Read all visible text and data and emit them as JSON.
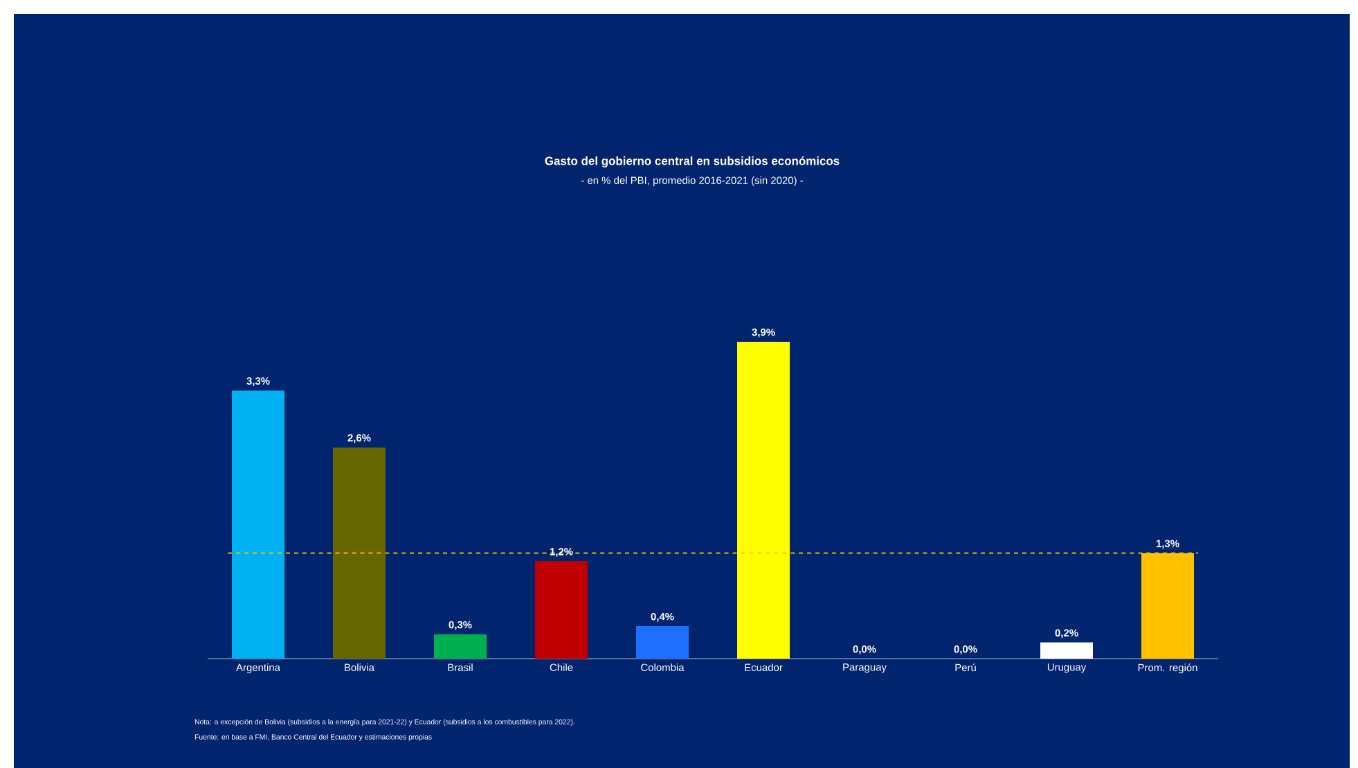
{
  "chart_data": {
    "type": "bar",
    "title": "Gasto del gobierno central en subsidios económicos",
    "subtitle": "- en % del PBI, promedio 2016-2021 (sin 2020) -",
    "categories": [
      "Argentina",
      "Bolivia",
      "Brasil",
      "Chile",
      "Colombia",
      "Ecuador",
      "Paraguay",
      "Perú",
      "Uruguay",
      "Prom. región"
    ],
    "values": [
      3.3,
      2.6,
      0.3,
      1.2,
      0.4,
      3.9,
      0.0,
      0.0,
      0.2,
      1.3
    ],
    "colors": [
      "#00b0f0",
      "#666600",
      "#00b050",
      "#c00000",
      "#1f6fff",
      "#ffff00",
      "#ffffff",
      "#ffffff",
      "#ffffff",
      "#ffc000"
    ],
    "value_labels": [
      "3,3%",
      "2,6%",
      "0,3%",
      "1,2%",
      "0,4%",
      "3,9%",
      "0,0%",
      "0,0%",
      "0,2%",
      "1,3%"
    ],
    "ref_lines": [
      {
        "axis": "y",
        "value": 1.3,
        "color": "#ffc000",
        "line_style": "dashed"
      }
    ],
    "annotations": [
      "Nota: a excepción de Bolivia (subsidios a la energía para 2021-22) y Ecuador (subsidios a los combustibles para 2022).",
      "Fuente: en base a FMI,  Banco Central del Ecuador y estimaciones propias"
    ]
  }
}
